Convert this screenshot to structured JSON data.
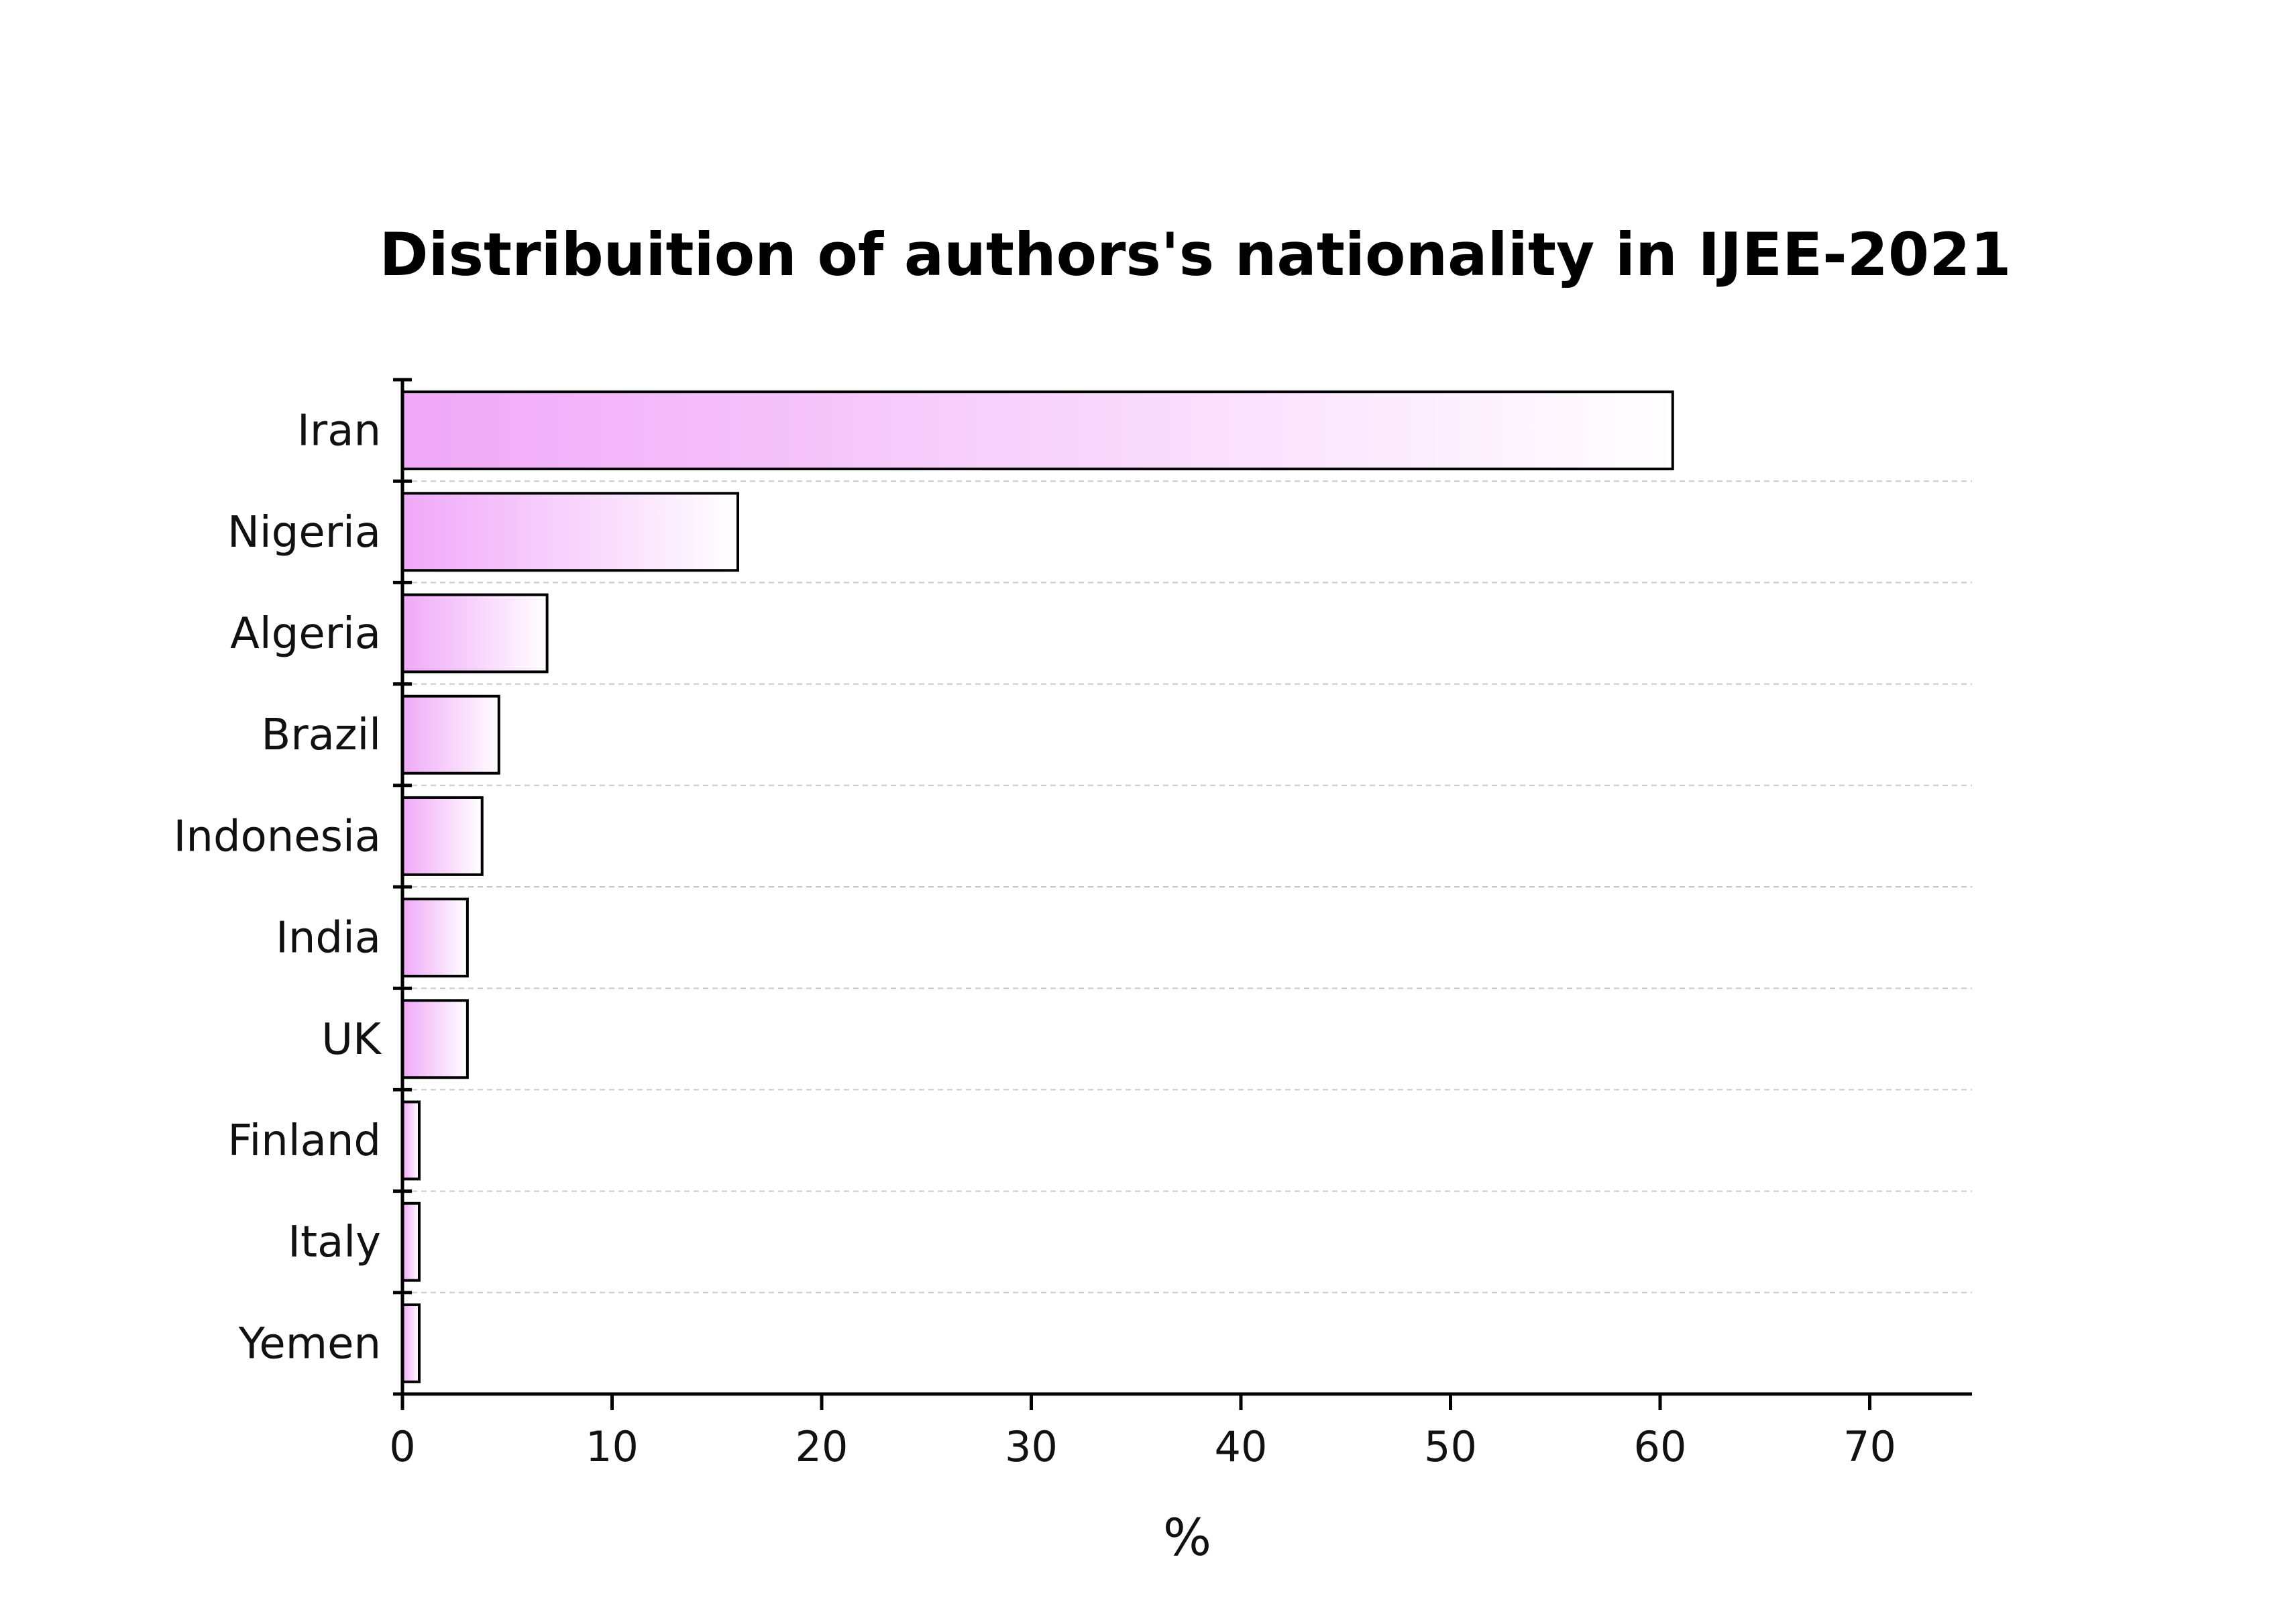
{
  "chart_data": {
    "type": "bar",
    "orientation": "horizontal",
    "title": "Distribuition of authors's nationality in IJEE-2021",
    "xlabel": "%",
    "ylabel": "",
    "categories": [
      "Iran",
      "Nigeria",
      "Algeria",
      "Brazil",
      "Indonesia",
      "India",
      "UK",
      "Finland",
      "Italy",
      "Yemen"
    ],
    "values": [
      60.6,
      16.0,
      6.9,
      4.6,
      3.8,
      3.1,
      3.1,
      0.8,
      0.8,
      0.8
    ],
    "xlim": [
      0,
      75
    ],
    "xticks": [
      0,
      10,
      20,
      30,
      40,
      50,
      60,
      70
    ],
    "xtick_labels": [
      "0",
      "10",
      "20",
      "30",
      "40",
      "50",
      "60",
      "70"
    ],
    "grid": "horizontal dashed",
    "colors": {
      "bar_gradient_start": "#f0a8f8",
      "bar_gradient_end": "#ffffff",
      "bar_edge": "#000000"
    }
  }
}
